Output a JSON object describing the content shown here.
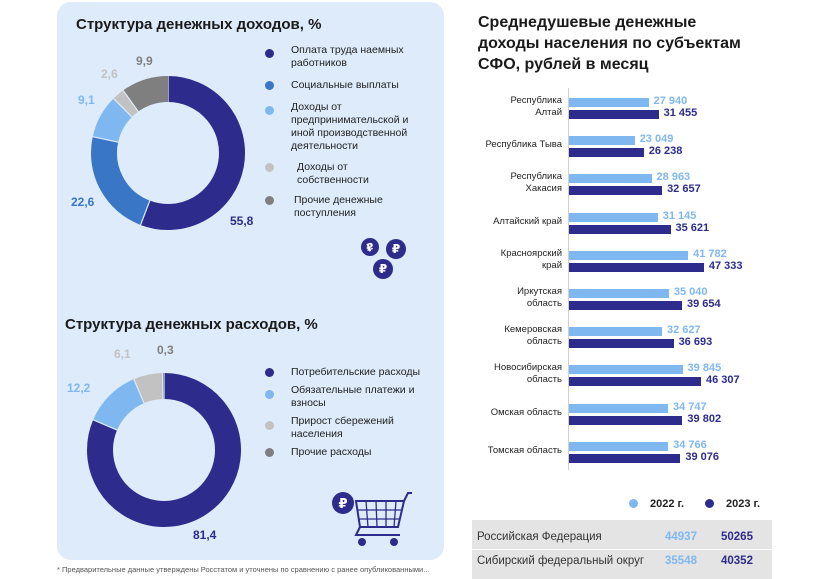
{
  "colors": {
    "dark": "#2d2c8c",
    "medium": "#3a76c6",
    "light": "#7fb8f0",
    "lightgray": "#c2c2c2",
    "gray": "#7f7f7f",
    "panel": "#ddebfb"
  },
  "icons": {
    "coins": "ruble-coins-icon",
    "cart": "shopping-cart-ruble-icon"
  },
  "chart_data": [
    {
      "type": "pie",
      "title": "Структура денежных доходов, %",
      "legend": "right",
      "categories": [
        "Оплата труда наемных работников",
        "Социальные выплаты",
        "Доходы от предпринимательской и иной производственной деятельности",
        "Доходы от собственности",
        "Прочие денежные поступления"
      ],
      "values": [
        55.8,
        22.6,
        9.1,
        2.6,
        9.9
      ],
      "value_labels": [
        "55,8",
        "22,6",
        "9,1",
        "2,6",
        "9,9"
      ],
      "colors": [
        "#2d2c8c",
        "#3a76c6",
        "#7fb8f0",
        "#c2c2c2",
        "#7f7f7f"
      ]
    },
    {
      "type": "pie",
      "title": "Структура денежных расходов, %",
      "legend": "right",
      "categories": [
        "Потребительские расходы",
        "Обязательные платежи и взносы",
        "Прирост сбережений населения",
        "Прочие расходы"
      ],
      "values": [
        81.4,
        12.2,
        6.1,
        0.3
      ],
      "value_labels": [
        "81,4",
        "12,2",
        "6,1",
        "0,3"
      ],
      "colors": [
        "#2d2c8c",
        "#7fb8f0",
        "#c2c2c2",
        "#7f7f7f"
      ]
    },
    {
      "type": "bar",
      "orientation": "horizontal",
      "title": "Среднедушевые денежные доходы населения по субъектам СФО, рублей в месяц",
      "legend": "bottom",
      "categories": [
        "Республика Алтай",
        "Республика Тыва",
        "Республика Хакасия",
        "Алтайский край",
        "Красноярский край",
        "Иркутская область",
        "Кемеровская область",
        "Новосибирская область",
        "Омская область",
        "Томская область"
      ],
      "series": [
        {
          "name": "2022 г.",
          "color": "#7fb8f0",
          "values": [
            27940,
            23049,
            28963,
            31145,
            41782,
            35040,
            32627,
            39845,
            34747,
            34766
          ],
          "labels": [
            "27 940",
            "23 049",
            "28 963",
            "31 145",
            "41 782",
            "35 040",
            "32 627",
            "39 845",
            "34 747",
            "34 766"
          ]
        },
        {
          "name": "2023 г.",
          "color": "#2d2c8c",
          "values": [
            31455,
            26238,
            32657,
            35621,
            47333,
            39654,
            36693,
            46307,
            39802,
            39076
          ],
          "labels": [
            "31 455",
            "26 238",
            "32 657",
            "35 621",
            "47 333",
            "39 654",
            "36 693",
            "46 307",
            "39 802",
            "39 076"
          ]
        }
      ]
    }
  ],
  "category_lines": [
    [
      "Республика",
      "Алтай"
    ],
    [
      "Республика Тыва"
    ],
    [
      "Республика",
      "Хакасия"
    ],
    [
      "Алтайский край"
    ],
    [
      "Красноярский",
      "край"
    ],
    [
      "Иркутская",
      "область"
    ],
    [
      "Кемеровская",
      "область"
    ],
    [
      "Новосибирская",
      "область"
    ],
    [
      "Омская область"
    ],
    [
      "Томская область"
    ]
  ],
  "right_title_lines": [
    "Среднедушевые денежные",
    "доходы населения по субъектам",
    "СФО, рублей в месяц"
  ],
  "summary_table": [
    {
      "name": "Российская Федерация",
      "y2022": "44937",
      "y2023": "50265"
    },
    {
      "name": "Сибирский федеральный округ",
      "y2022": "35548",
      "y2023": "40352"
    }
  ],
  "footnote": "* Предварительные данные утверждены Росстатом и уточнены по сравнению с ранее опубликованными..."
}
